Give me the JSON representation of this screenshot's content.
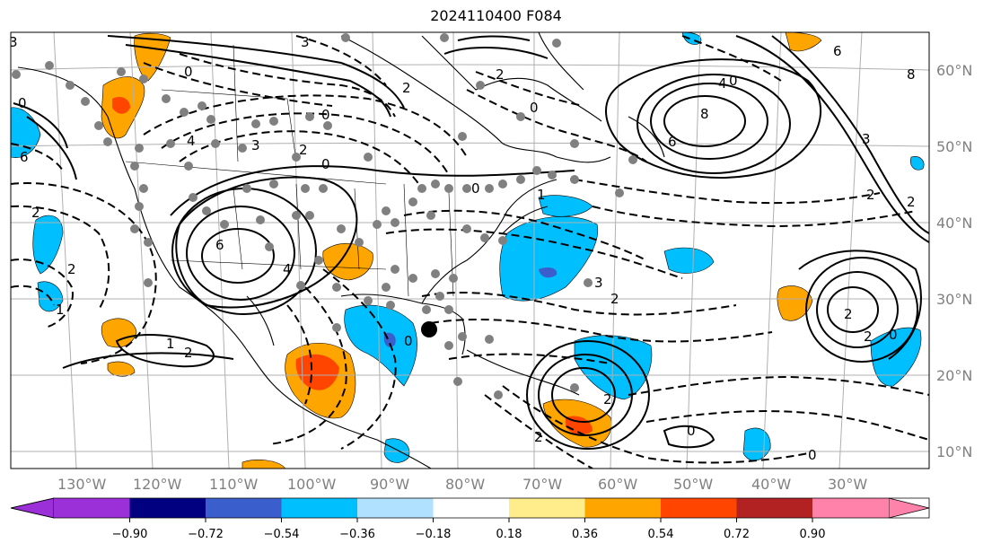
{
  "title": "2024110400 F084",
  "map": {
    "lon_labels": [
      "130°W",
      "120°W",
      "110°W",
      "100°W",
      "90°W",
      "80°W",
      "70°W",
      "60°W",
      "50°W",
      "40°W",
      "30°W"
    ],
    "lat_labels": [
      "60°N",
      "50°N",
      "40°N",
      "30°N",
      "20°N",
      "10°N"
    ],
    "contour_labels": [
      "3",
      "3",
      "0",
      "2",
      "0",
      "4",
      "3",
      "2",
      "0",
      "2",
      "0",
      "6",
      "4",
      "8",
      "0",
      "6",
      "3",
      "2",
      "1",
      "2",
      "0",
      "6",
      "3",
      "4",
      "2",
      "1",
      "2",
      "2",
      "1",
      "2",
      "2",
      "0",
      "0",
      "2",
      "6",
      "8",
      "2",
      "0",
      "0",
      "2",
      "0"
    ],
    "storm_marker": "large-black-dot"
  },
  "colorbar": {
    "tick_labels": [
      "−0.90",
      "−0.72",
      "−0.54",
      "−0.36",
      "−0.18",
      "0.18",
      "0.36",
      "0.54",
      "0.72",
      "0.90"
    ],
    "colors": [
      "#9b30d9",
      "#000080",
      "#3a5fcd",
      "#00bfff",
      "#b0e2ff",
      "#ffffff",
      "#ffec8b",
      "#ffa500",
      "#ff4500",
      "#b22222",
      "#ff82ab"
    ]
  }
}
